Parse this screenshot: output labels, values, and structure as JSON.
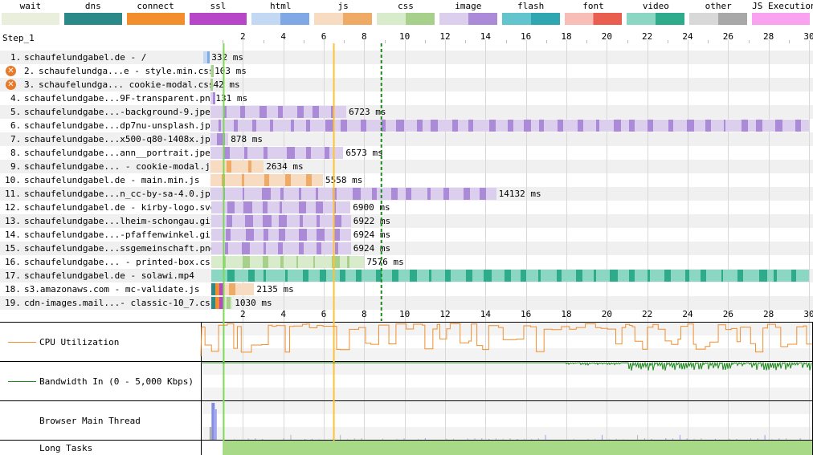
{
  "legend": [
    {
      "label": "wait",
      "color": "#eaeedd",
      "dark": "#c9cbb6"
    },
    {
      "label": "dns",
      "color": "#2b8a88",
      "dark": "#1f6a68"
    },
    {
      "label": "connect",
      "color": "#f28e2c",
      "dark": "#d37417"
    },
    {
      "label": "ssl",
      "color": "#b847c7",
      "dark": "#9a31a8"
    },
    {
      "label": "html",
      "color": "#c3d8f3",
      "dark": "#7fa8e5"
    },
    {
      "label": "js",
      "color": "#f7dcc2",
      "dark": "#efaa66"
    },
    {
      "label": "css",
      "color": "#d8eccc",
      "dark": "#a7d18b"
    },
    {
      "label": "image",
      "color": "#dccfee",
      "dark": "#ab8bd8"
    },
    {
      "label": "flash",
      "color": "#62c4cc",
      "dark": "#2fa7b0"
    },
    {
      "label": "font",
      "color": "#f7bdb6",
      "dark": "#e95e4f"
    },
    {
      "label": "video",
      "color": "#8cd6c4",
      "dark": "#2eab8a"
    },
    {
      "label": "other",
      "color": "#d8d8d8",
      "dark": "#a8a8a8"
    },
    {
      "label": "JS Execution",
      "color": "#f8a2f0",
      "dark": "#f8a2f0"
    }
  ],
  "step_label": "Step_1",
  "axis_ticks": [
    "2",
    "4",
    "6",
    "8",
    "10",
    "12",
    "14",
    "16",
    "18",
    "20",
    "22",
    "24",
    "26",
    "28",
    "30"
  ],
  "axis_max_seconds": 30,
  "markers": {
    "start_render_s": 1.05,
    "dom_content_loaded_s": 6.5,
    "on_load_s": 8.85
  },
  "requests": [
    {
      "num": "1.",
      "label": "schaufelundgabel.de - /",
      "warn": false,
      "start": 0.05,
      "ttfb": 0.25,
      "end": 0.33,
      "duration": "332 ms",
      "type": "html"
    },
    {
      "num": "2.",
      "label": "schaufelundga...e - style.min.css",
      "warn": true,
      "start": 0.38,
      "ttfb": 0.43,
      "end": 0.48,
      "duration": "103 ms",
      "type": "css"
    },
    {
      "num": "3.",
      "label": "schaufelundga... cookie-modal.css",
      "warn": true,
      "start": 0.38,
      "ttfb": 0.41,
      "end": 0.42,
      "duration": "42 ms",
      "type": "css"
    },
    {
      "num": "4.",
      "label": "schaufelundgabe...9F-transparent.png",
      "warn": false,
      "start": 0.4,
      "ttfb": 0.5,
      "end": 0.53,
      "duration": "131 ms",
      "type": "image"
    },
    {
      "num": "5.",
      "label": "schaufelundgabe...-background-9.jpeg",
      "warn": false,
      "start": 0.4,
      "ttfb": 1.0,
      "end": 7.12,
      "duration": "6723 ms",
      "type": "image"
    },
    {
      "num": "6.",
      "label": "schaufelundgabe...dp7nu-unsplash.jpg",
      "warn": false,
      "start": 0.4,
      "ttfb": 0.6,
      "end": 30.0,
      "duration": "",
      "type": "image"
    },
    {
      "num": "7.",
      "label": "schaufelundgabe...x500-q80-1408x.jpg",
      "warn": false,
      "start": 0.4,
      "ttfb": 0.55,
      "end": 1.28,
      "duration": "878 ms",
      "type": "image"
    },
    {
      "num": "8.",
      "label": "schaufelundgabe...ann__portrait.jpeg",
      "warn": false,
      "start": 0.4,
      "ttfb": 0.9,
      "end": 6.97,
      "duration": "6573 ms",
      "type": "image"
    },
    {
      "num": "9.",
      "label": "schaufelundgabe... - cookie-modal.js",
      "warn": false,
      "start": 0.4,
      "ttfb": 1.1,
      "end": 3.03,
      "duration": "2634 ms",
      "type": "js"
    },
    {
      "num": "10.",
      "label": "schaufelundgabel.de - main.min.js",
      "warn": false,
      "start": 0.4,
      "ttfb": 0.9,
      "end": 5.96,
      "duration": "5558 ms",
      "type": "js"
    },
    {
      "num": "11.",
      "label": "schaufelundgabe...n_cc-by-sa-4.0.jpg",
      "warn": false,
      "start": 0.4,
      "ttfb": 1.0,
      "end": 14.53,
      "duration": "14132 ms",
      "type": "image"
    },
    {
      "num": "12.",
      "label": "schaufelundgabel.de - kirby-logo.svg",
      "warn": false,
      "start": 0.42,
      "ttfb": 1.0,
      "end": 7.32,
      "duration": "6900 ms",
      "type": "image"
    },
    {
      "num": "13.",
      "label": "schaufelundgabe...lheim-schongau.gif",
      "warn": false,
      "start": 0.42,
      "ttfb": 1.0,
      "end": 7.34,
      "duration": "6922 ms",
      "type": "image"
    },
    {
      "num": "14.",
      "label": "schaufelundgabe...-pfaffenwinkel.gif",
      "warn": false,
      "start": 0.42,
      "ttfb": 1.0,
      "end": 7.34,
      "duration": "6924 ms",
      "type": "image"
    },
    {
      "num": "15.",
      "label": "schaufelundgabe...ssgemeinschaft.png",
      "warn": false,
      "start": 0.42,
      "ttfb": 1.0,
      "end": 7.34,
      "duration": "6924 ms",
      "type": "image"
    },
    {
      "num": "16.",
      "label": "schaufelundgabe... - printed-box.css",
      "warn": false,
      "start": 0.42,
      "ttfb": 1.0,
      "end": 8.0,
      "duration": "7576 ms",
      "type": "css"
    },
    {
      "num": "17.",
      "label": "schaufelundgabel.de - solawi.mp4",
      "warn": false,
      "start": 0.42,
      "ttfb": 1.2,
      "end": 30.0,
      "duration": "",
      "type": "video"
    },
    {
      "num": "18.",
      "label": "s3.amazonaws.com - mc-validate.js",
      "warn": false,
      "start": 0.42,
      "ttfb": 1.1,
      "end": 2.56,
      "duration": "2135 ms",
      "type": "js",
      "conn": true
    },
    {
      "num": "19.",
      "label": "cdn-images.mail...- classic-10_7.css",
      "warn": false,
      "start": 0.45,
      "ttfb": 1.0,
      "end": 1.48,
      "duration": "1030 ms",
      "type": "css",
      "conn": true
    }
  ],
  "panels": {
    "cpu_label": "CPU Utilization",
    "bandwidth_label": "Bandwidth In (0 - 5,000 Kbps)",
    "main_thread_label": "Browser Main Thread",
    "long_tasks_label": "Long Tasks"
  }
}
